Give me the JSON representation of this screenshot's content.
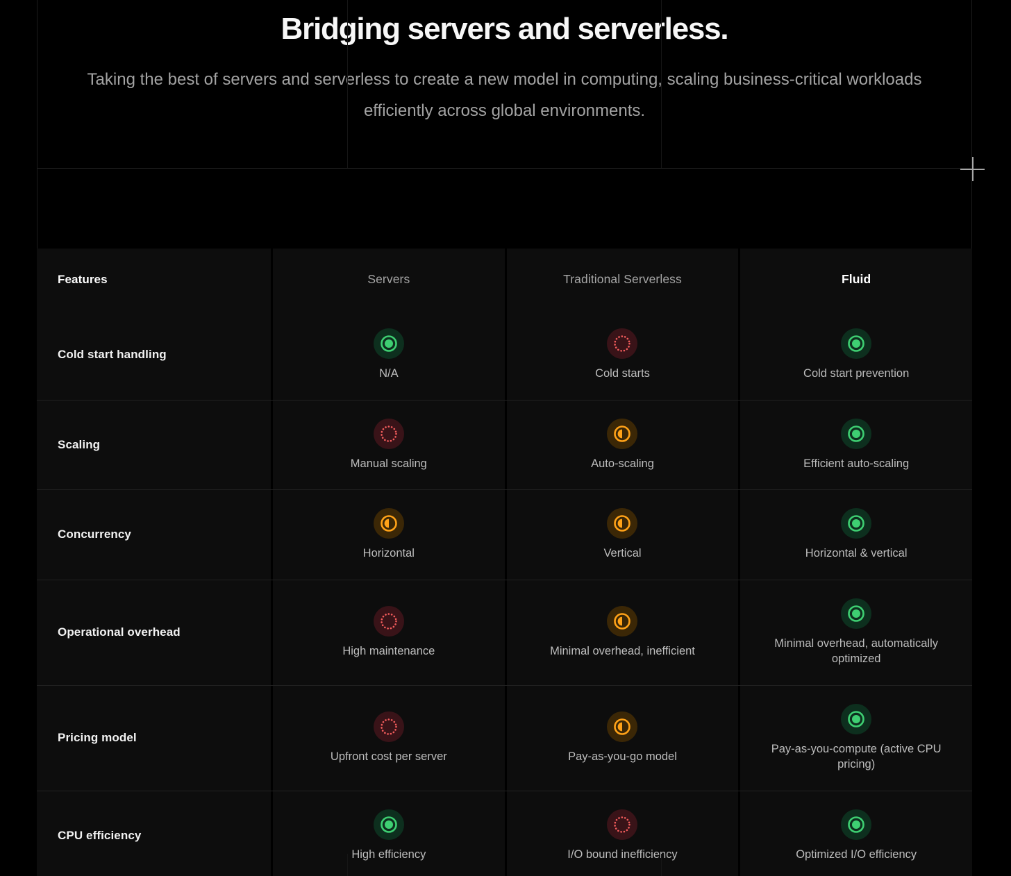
{
  "hero": {
    "title": "Bridging servers and serverless.",
    "subtitle": "Taking the best of servers and serverless to create a new model in computing, scaling business-critical workloads efficiently across global environments."
  },
  "table": {
    "columns": [
      {
        "label": "Features",
        "strong": true
      },
      {
        "label": "Servers",
        "strong": false
      },
      {
        "label": "Traditional Serverless",
        "strong": false
      },
      {
        "label": "Fluid",
        "strong": true
      }
    ],
    "rows": [
      {
        "feature": "Cold start handling",
        "cells": [
          {
            "status": "good",
            "label": "N/A"
          },
          {
            "status": "bad",
            "label": "Cold starts"
          },
          {
            "status": "good",
            "label": "Cold start prevention"
          }
        ]
      },
      {
        "feature": "Scaling",
        "cells": [
          {
            "status": "bad",
            "label": "Manual scaling"
          },
          {
            "status": "partial",
            "label": "Auto-scaling"
          },
          {
            "status": "good",
            "label": "Efficient auto-scaling"
          }
        ]
      },
      {
        "feature": "Concurrency",
        "cells": [
          {
            "status": "partial",
            "label": "Horizontal"
          },
          {
            "status": "partial",
            "label": "Vertical"
          },
          {
            "status": "good",
            "label": "Horizontal & vertical"
          }
        ]
      },
      {
        "feature": "Operational overhead",
        "cells": [
          {
            "status": "bad",
            "label": "High maintenance"
          },
          {
            "status": "partial",
            "label": "Minimal overhead, inefficient"
          },
          {
            "status": "good",
            "label": "Minimal overhead, automatically optimized"
          }
        ]
      },
      {
        "feature": "Pricing model",
        "cells": [
          {
            "status": "bad",
            "label": "Upfront cost per server"
          },
          {
            "status": "partial",
            "label": "Pay-as-you-go model"
          },
          {
            "status": "good",
            "label": "Pay-as-you-compute (active CPU pricing)"
          }
        ]
      },
      {
        "feature": "CPU efficiency",
        "cells": [
          {
            "status": "good",
            "label": "High efficiency"
          },
          {
            "status": "bad",
            "label": "I/O bound inefficiency"
          },
          {
            "status": "good",
            "label": "Optimized I/O efficiency"
          }
        ]
      }
    ]
  },
  "status_styles": {
    "good": {
      "icon": "status-good-icon",
      "ring": "#3ecf72",
      "bg": "#0d2f1e"
    },
    "partial": {
      "icon": "status-partial-icon",
      "ring": "#ffa218",
      "bg": "#3b2706"
    },
    "bad": {
      "icon": "status-bad-icon",
      "ring": "#f25c5c",
      "bg": "#391318"
    }
  },
  "colors": {
    "page_bg": "#000000",
    "cell_bg": "#0d0d0d",
    "grid_line": "#1f1f1f",
    "label_muted": "#a6a6a6"
  }
}
